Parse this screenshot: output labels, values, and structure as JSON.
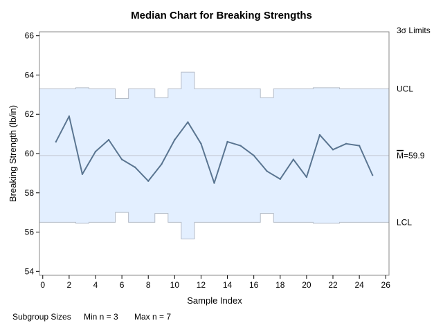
{
  "chart_data": {
    "type": "line",
    "title": "Median Chart for Breaking Strengths",
    "xlabel": "Sample Index",
    "ylabel": "Breaking Strength (lb/in)",
    "xlim": [
      -0.25,
      26.25
    ],
    "ylim": [
      53.8,
      66.2
    ],
    "x_ticks": [
      0,
      2,
      4,
      6,
      8,
      10,
      12,
      14,
      16,
      18,
      20,
      22,
      24,
      26
    ],
    "x_tick_labels": [
      "0",
      "2",
      "4",
      "6",
      "8",
      "10",
      "12",
      "14",
      "16",
      "18",
      "20",
      "22",
      "24",
      "26"
    ],
    "y_ticks": [
      54,
      56,
      58,
      60,
      62,
      64,
      66
    ],
    "y_tick_labels": [
      "54",
      "56",
      "58",
      "60",
      "62",
      "64",
      "66"
    ],
    "center_line": 59.9,
    "limits_label": "3σ Limits",
    "ucl_label": "UCL",
    "lcl_label": "LCL",
    "center_label": "M",
    "center_value_label": "=59.9",
    "x": [
      1,
      2,
      3,
      4,
      5,
      6,
      7,
      8,
      9,
      10,
      11,
      12,
      13,
      14,
      15,
      16,
      17,
      18,
      19,
      20,
      21,
      22,
      23,
      24,
      25
    ],
    "values": [
      60.6,
      61.9,
      58.95,
      60.1,
      60.7,
      59.7,
      59.3,
      58.6,
      59.45,
      60.7,
      61.6,
      60.5,
      58.5,
      60.6,
      60.4,
      59.9,
      59.1,
      58.7,
      59.7,
      58.8,
      60.95,
      60.2,
      60.5,
      60.4,
      58.9
    ],
    "ucl": [
      63.3,
      63.3,
      63.35,
      63.3,
      63.3,
      62.8,
      63.3,
      63.3,
      62.85,
      63.3,
      64.15,
      63.3,
      63.3,
      63.3,
      63.3,
      63.3,
      62.85,
      63.3,
      63.3,
      63.3,
      63.35,
      63.35,
      63.3,
      63.3,
      63.3
    ],
    "lcl": [
      56.5,
      56.5,
      56.45,
      56.5,
      56.5,
      57.0,
      56.5,
      56.5,
      56.95,
      56.5,
      55.65,
      56.5,
      56.5,
      56.5,
      56.5,
      56.5,
      56.95,
      56.5,
      56.5,
      56.5,
      56.45,
      56.45,
      56.5,
      56.5,
      56.5
    ],
    "grid": false,
    "colors": {
      "line": "#5a7591",
      "band_fill": "#e3efff",
      "band_edge": "#b4bcc8",
      "center": "#c3c8d0",
      "frame": "#888888"
    }
  },
  "footer": {
    "sizes_label": "Subgroup Sizes",
    "min_label": "Min n = 3",
    "max_label": "Max n = 7"
  }
}
